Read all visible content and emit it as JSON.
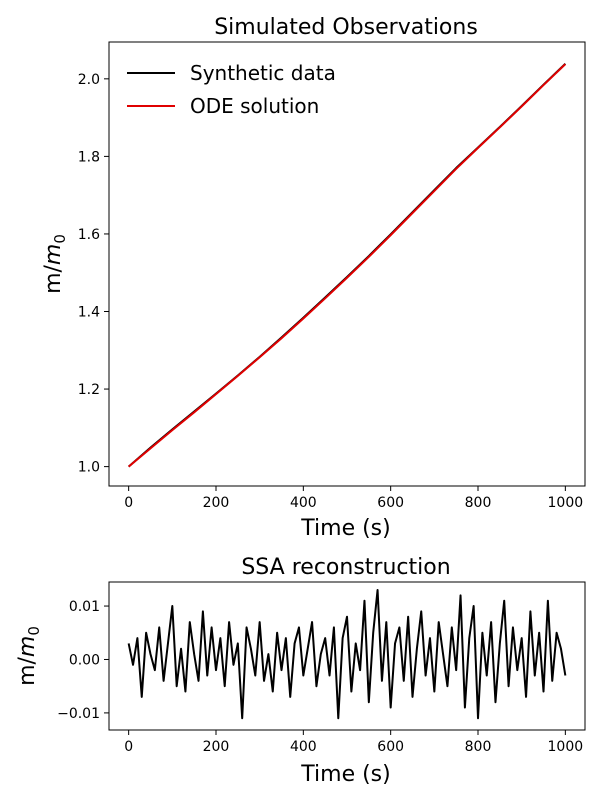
{
  "chart_data": [
    {
      "type": "line",
      "title": "Simulated Observations",
      "xlabel": "Time (s)",
      "ylabel_main": "m/",
      "ylabel_italic": "m",
      "ylabel_sub": "0",
      "xlim": [
        -45,
        1045
      ],
      "ylim": [
        0.95,
        2.095
      ],
      "xticks": [
        0,
        200,
        400,
        600,
        800,
        1000
      ],
      "yticks": [
        1.0,
        1.2,
        1.4,
        1.6,
        1.8,
        2.0
      ],
      "ytick_labels": [
        "1.0",
        "1.2",
        "1.4",
        "1.6",
        "1.8",
        "2.0"
      ],
      "legend_position": "upper-left",
      "series": [
        {
          "name": "Synthetic data",
          "color": "#000000",
          "x": [
            0,
            50,
            100,
            150,
            200,
            250,
            300,
            350,
            400,
            450,
            500,
            550,
            600,
            650,
            700,
            750,
            800,
            850,
            900,
            950,
            1000
          ],
          "y": [
            1.0,
            1.049,
            1.096,
            1.142,
            1.188,
            1.235,
            1.283,
            1.333,
            1.384,
            1.436,
            1.489,
            1.543,
            1.599,
            1.656,
            1.713,
            1.77,
            1.823,
            1.876,
            1.93,
            1.985,
            2.039
          ]
        },
        {
          "name": "ODE solution",
          "color": "#e00000",
          "x": [
            0,
            50,
            100,
            150,
            200,
            250,
            300,
            350,
            400,
            450,
            500,
            550,
            600,
            650,
            700,
            750,
            800,
            850,
            900,
            950,
            1000
          ],
          "y": [
            1.0,
            1.047,
            1.094,
            1.14,
            1.187,
            1.234,
            1.282,
            1.331,
            1.382,
            1.434,
            1.487,
            1.541,
            1.597,
            1.654,
            1.711,
            1.768,
            1.822,
            1.875,
            1.929,
            1.984,
            2.038
          ]
        }
      ]
    },
    {
      "type": "line",
      "title": "SSA reconstruction",
      "xlabel": "Time (s)",
      "ylabel_main": "m/",
      "ylabel_italic": "m",
      "ylabel_sub": "0",
      "xlim": [
        -45,
        1045
      ],
      "ylim": [
        -0.0132,
        0.0145
      ],
      "xticks": [
        0,
        200,
        400,
        600,
        800,
        1000
      ],
      "yticks": [
        -0.01,
        0.0,
        0.01
      ],
      "ytick_labels": [
        "−0.01",
        "0.00",
        "0.01"
      ],
      "series": [
        {
          "color": "#000000",
          "x": [
            0,
            10,
            20,
            30,
            40,
            50,
            60,
            70,
            80,
            90,
            100,
            110,
            120,
            130,
            140,
            150,
            160,
            170,
            180,
            190,
            200,
            210,
            220,
            230,
            240,
            250,
            260,
            270,
            280,
            290,
            300,
            310,
            320,
            330,
            340,
            350,
            360,
            370,
            380,
            390,
            400,
            410,
            420,
            430,
            440,
            450,
            460,
            470,
            480,
            490,
            500,
            510,
            520,
            530,
            540,
            550,
            560,
            570,
            580,
            590,
            600,
            610,
            620,
            630,
            640,
            650,
            660,
            670,
            680,
            690,
            700,
            710,
            720,
            730,
            740,
            750,
            760,
            770,
            780,
            790,
            800,
            810,
            820,
            830,
            840,
            850,
            860,
            870,
            880,
            890,
            900,
            910,
            920,
            930,
            940,
            950,
            960,
            970,
            980,
            990,
            1000
          ],
          "y": [
            0.003,
            -0.001,
            0.004,
            -0.007,
            0.005,
            0.001,
            -0.002,
            0.006,
            -0.004,
            0.003,
            0.01,
            -0.005,
            0.002,
            -0.006,
            0.007,
            0.001,
            -0.004,
            0.009,
            -0.003,
            0.006,
            -0.002,
            0.004,
            -0.005,
            0.007,
            -0.001,
            0.003,
            -0.011,
            0.006,
            0.002,
            -0.003,
            0.007,
            -0.004,
            0.001,
            -0.006,
            0.005,
            -0.002,
            0.004,
            -0.007,
            0.003,
            0.006,
            -0.003,
            0.002,
            0.007,
            -0.005,
            0.001,
            0.004,
            -0.003,
            0.006,
            -0.011,
            0.004,
            0.008,
            -0.006,
            0.003,
            -0.002,
            0.011,
            -0.008,
            0.005,
            0.013,
            -0.004,
            0.007,
            -0.009,
            0.003,
            0.006,
            -0.004,
            0.008,
            -0.007,
            0.002,
            0.009,
            -0.003,
            0.004,
            -0.006,
            0.007,
            0.001,
            -0.005,
            0.006,
            -0.002,
            0.012,
            -0.009,
            0.004,
            0.01,
            -0.011,
            0.005,
            -0.003,
            0.007,
            -0.008,
            0.003,
            0.011,
            -0.005,
            0.006,
            -0.002,
            0.004,
            -0.007,
            0.009,
            -0.003,
            0.005,
            -0.006,
            0.011,
            -0.004,
            0.005,
            0.002,
            -0.003
          ]
        }
      ]
    }
  ]
}
